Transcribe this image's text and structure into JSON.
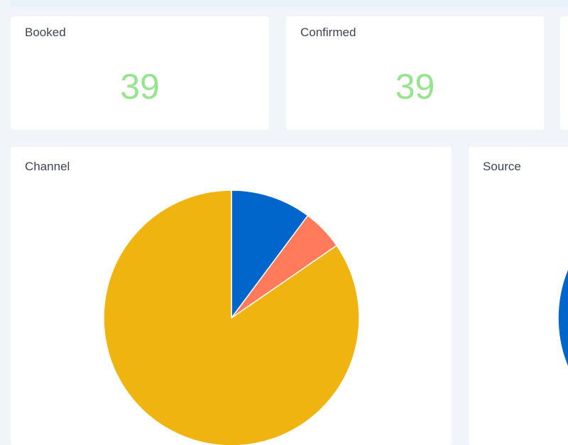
{
  "stats": {
    "booked": {
      "label": "Booked",
      "value": "39"
    },
    "confirmed": {
      "label": "Confirmed",
      "value": "39"
    }
  },
  "colors": {
    "background": "#f1f5f9",
    "card": "#ffffff",
    "stat_value": "#96e48f",
    "title_text": "#3d4550"
  },
  "channel_card": {
    "title": "Channel"
  },
  "source_card": {
    "title": "Source"
  },
  "chart_data": [
    {
      "type": "pie",
      "title": "Channel",
      "slices": [
        {
          "value": 10.2,
          "color": "#0066cc"
        },
        {
          "value": 5.2,
          "color": "#ff7b5b"
        },
        {
          "value": 84.6,
          "color": "#f0b410"
        }
      ]
    },
    {
      "type": "pie",
      "title": "Source",
      "slices": [
        {
          "value": 100,
          "color": "#0066cc"
        }
      ]
    }
  ]
}
